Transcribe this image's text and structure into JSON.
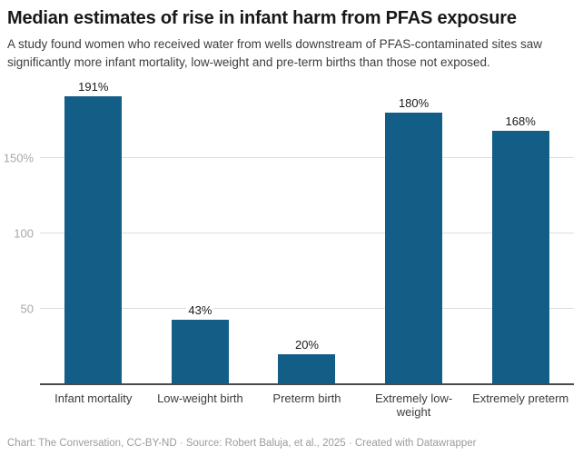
{
  "header": {
    "title": "Median estimates of rise in infant harm from PFAS exposure",
    "subtitle": "A study found women who received water from wells downstream of PFAS-contaminated sites saw significantly more infant mortality, low-weight and pre-term births than those not exposed."
  },
  "chart_data": {
    "type": "bar",
    "title": "Median estimates of rise in infant harm from PFAS exposure",
    "categories": [
      "Infant mortality",
      "Low-weight birth",
      "Preterm birth",
      "Extremely low-weight",
      "Extremely preterm"
    ],
    "values": [
      191,
      43,
      20,
      180,
      168
    ],
    "value_labels": [
      "191%",
      "43%",
      "20%",
      "180%",
      "168%"
    ],
    "xlabel": "",
    "ylabel": "",
    "ylim": [
      0,
      201
    ],
    "y_ticks": [
      {
        "value": 50,
        "label": "50"
      },
      {
        "value": 100,
        "label": "100"
      },
      {
        "value": 150,
        "label": "150%"
      }
    ],
    "grid": "horizontal",
    "legend": "none",
    "bar_color": "#125e87",
    "axis_color": "#4a4a4a",
    "grid_color": "#dddddd"
  },
  "footer": {
    "text": "Chart: The Conversation, CC-BY-ND · Source: Robert Baluja, et al., 2025 · Created with Datawrapper"
  }
}
